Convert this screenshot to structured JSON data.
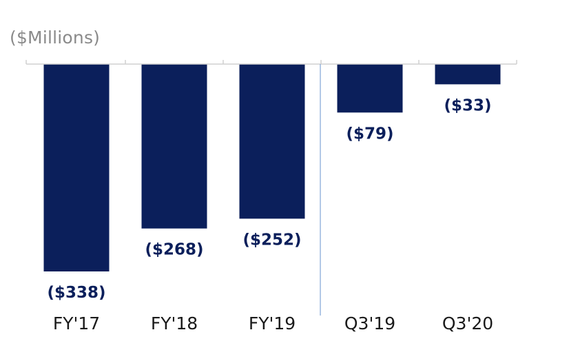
{
  "chart_data": {
    "type": "bar",
    "unit_label": "($Millions)",
    "categories": [
      "FY'17",
      "FY'18",
      "FY'19",
      "Q3'19",
      "Q3'20"
    ],
    "values": [
      -338,
      -268,
      -252,
      -79,
      -33
    ],
    "data_labels": [
      "($338)",
      "($268)",
      "($252)",
      "($79)",
      "($33)"
    ],
    "ylim": [
      -338,
      0
    ],
    "grid": false,
    "legend": "none",
    "separator_after_index": 2
  },
  "colors": {
    "bar": "#0b1f5b",
    "data_label": "#0b1f5b",
    "axis": "#d0d0d0",
    "separator": "#7fa3d6",
    "unit_label": "#8a8a8a"
  }
}
